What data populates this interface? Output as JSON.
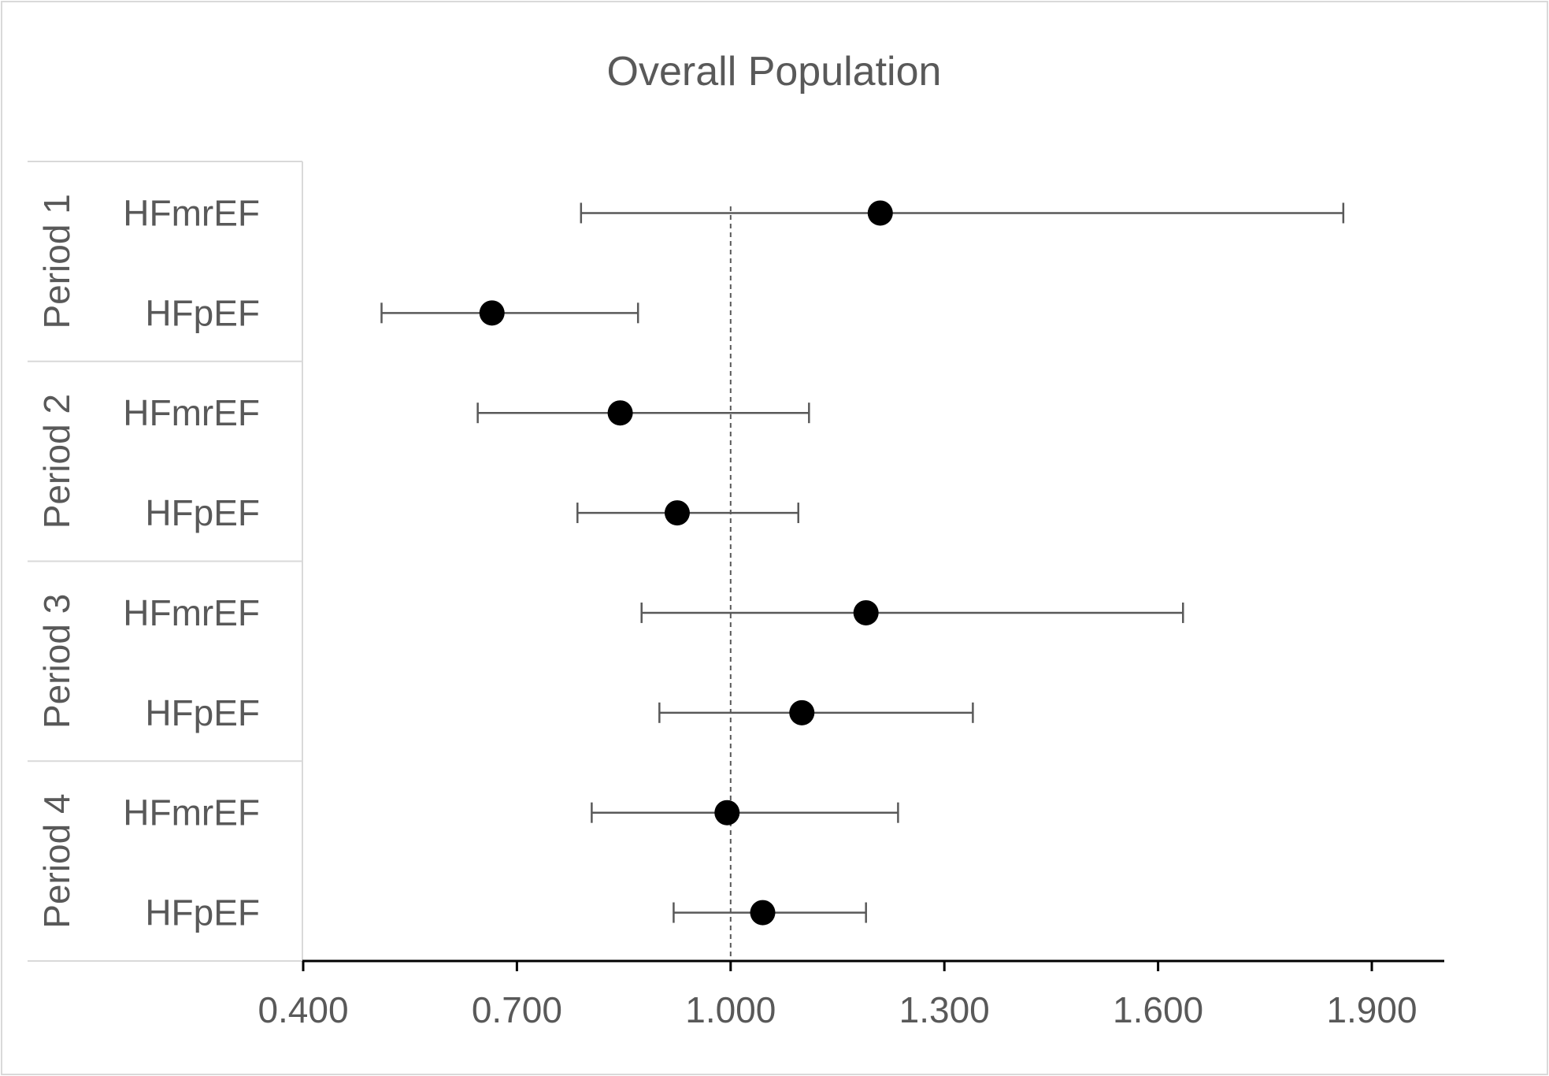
{
  "chart_data": {
    "type": "scatter",
    "subtype": "forest-plot",
    "title": "Overall Population",
    "xlabel": "",
    "ylabel": "",
    "xlim": [
      0.4,
      2.0
    ],
    "x_ticks": [
      0.4,
      0.7,
      1.0,
      1.3,
      1.6,
      1.9
    ],
    "x_tick_labels": [
      "0.400",
      "0.700",
      "1.000",
      "1.300",
      "1.600",
      "1.900"
    ],
    "reference_line": 1.0,
    "grid": false,
    "legend": "none",
    "groups": [
      {
        "label": "Period 1",
        "rows": [
          {
            "label": "HFmrEF",
            "estimate": 1.21,
            "lower": 0.79,
            "upper": 1.86
          },
          {
            "label": "HFpEF",
            "estimate": 0.665,
            "lower": 0.51,
            "upper": 0.87
          }
        ]
      },
      {
        "label": "Period 2",
        "rows": [
          {
            "label": "HFmrEF",
            "estimate": 0.845,
            "lower": 0.645,
            "upper": 1.11
          },
          {
            "label": "HFpEF",
            "estimate": 0.925,
            "lower": 0.785,
            "upper": 1.095
          }
        ]
      },
      {
        "label": "Period 3",
        "rows": [
          {
            "label": "HFmrEF",
            "estimate": 1.19,
            "lower": 0.875,
            "upper": 1.635
          },
          {
            "label": "HFpEF",
            "estimate": 1.1,
            "lower": 0.9,
            "upper": 1.34
          }
        ]
      },
      {
        "label": "Period 4",
        "rows": [
          {
            "label": "HFmrEF",
            "estimate": 0.995,
            "lower": 0.805,
            "upper": 1.235
          },
          {
            "label": "HFpEF",
            "estimate": 1.045,
            "lower": 0.92,
            "upper": 1.19
          }
        ]
      }
    ],
    "colors": {
      "marker": "#000000",
      "error_bar": "#595959",
      "text": "#595959",
      "axis": "#000000",
      "frame": "#d9d9d9",
      "reference_line": "#595959"
    }
  }
}
